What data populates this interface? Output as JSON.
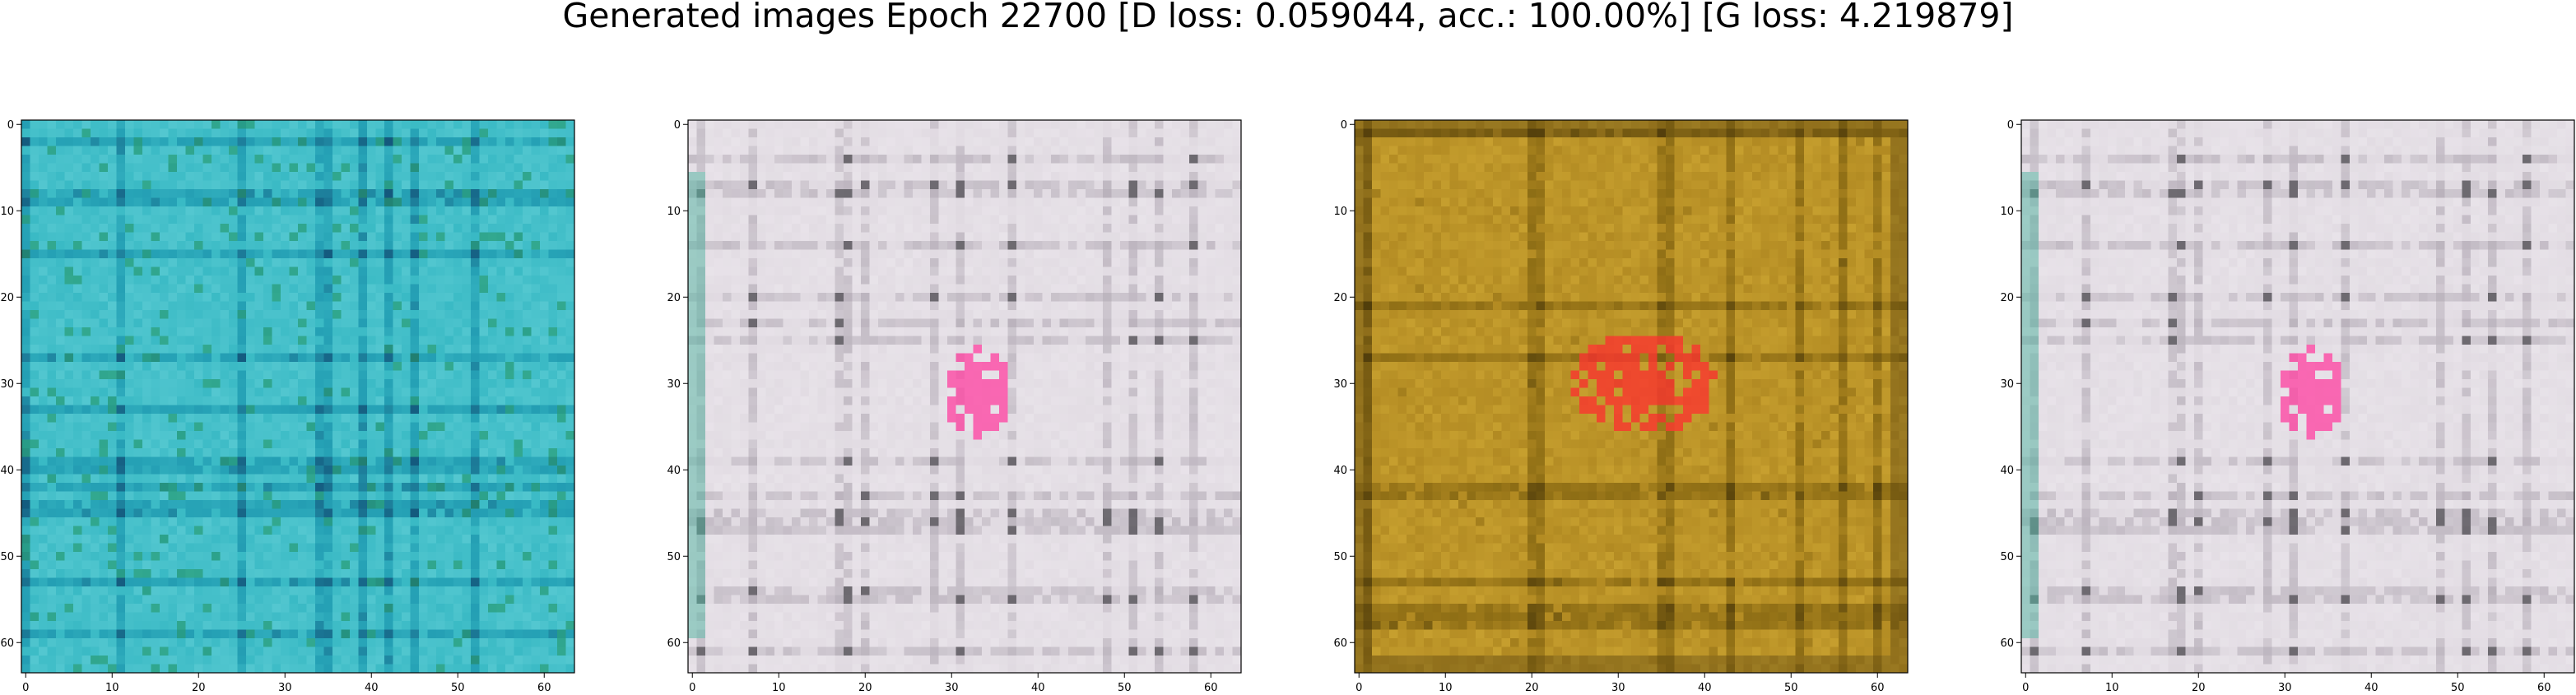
{
  "figure": {
    "title": "Generated images Epoch 22700 [D loss: 0.059044, acc.: 100.00%] [G loss: 4.219879]"
  },
  "panels": [
    {
      "name": "generated-image-1",
      "image_description_colors": {
        "base": "#2fb4c0",
        "light": "#6fd6dc",
        "dark": "#0d2a55",
        "mid": "#1a8aa8",
        "accent": "#2a9a6a"
      },
      "style": "teal-grid"
    },
    {
      "name": "generated-image-2",
      "image_description_colors": {
        "base": "#d9d2da",
        "light": "#f2eef3",
        "dark": "#3b3a3e",
        "mid": "#a9a1ac",
        "accent": "#ff3fa0"
      },
      "style": "pale-grid"
    },
    {
      "name": "generated-image-3",
      "image_description_colors": {
        "base": "#a8801c",
        "light": "#d9b23a",
        "dark": "#3a2a08",
        "mid": "#7a6010",
        "accent": "#ff3030"
      },
      "style": "ochre-grid"
    },
    {
      "name": "generated-image-4",
      "image_description_colors": {
        "base": "#d9d2da",
        "light": "#f2eef3",
        "dark": "#3b3a3e",
        "mid": "#a9a1ac",
        "accent": "#ff3fa0"
      },
      "style": "pale-grid"
    }
  ],
  "axes": {
    "x_tick_labels": [
      "0",
      "10",
      "20",
      "30",
      "40",
      "50",
      "60"
    ],
    "y_tick_labels": [
      "0",
      "10",
      "20",
      "30",
      "40",
      "50",
      "60"
    ],
    "range": [
      0,
      63
    ]
  }
}
